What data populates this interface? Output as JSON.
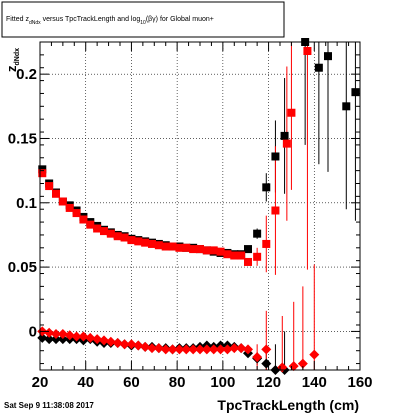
{
  "title": {
    "part1": "Fitted  z",
    "sub1": "dNdx",
    "part2": " versus TpcTrackLength and log",
    "sub2": "10",
    "part3": "(βγ) for Global muon+"
  },
  "footer": "Sat Sep  9 11:38:08 2017",
  "chart_data": {
    "type": "scatter",
    "title": "Fitted z_dNdx versus TpcTrackLength and log10(βγ) for Global muon+",
    "xlabel": "TpcTrackLength (cm)",
    "ylabel": "z_dNdx",
    "ylabel_main": "z",
    "ylabel_sub": "dNdx",
    "xlim": [
      20,
      160
    ],
    "ylim": [
      -0.03,
      0.225
    ],
    "grid": true,
    "x_ticks": [
      20,
      40,
      60,
      80,
      100,
      120,
      140,
      160
    ],
    "y_ticks": [
      {
        "v": 0,
        "label": "0"
      },
      {
        "v": 0.05,
        "label": "0.05"
      },
      {
        "v": 0.1,
        "label": "0.1"
      },
      {
        "v": 0.15,
        "label": "0.15"
      },
      {
        "v": 0.2,
        "label": "0.2"
      }
    ],
    "series": [
      {
        "marker": "square",
        "color": "#000000",
        "points": [
          [
            21,
            0.126,
            0
          ],
          [
            24,
            0.115,
            0
          ],
          [
            27,
            0.108,
            0
          ],
          [
            30,
            0.101,
            0
          ],
          [
            33,
            0.098,
            0
          ],
          [
            36,
            0.094,
            0
          ],
          [
            39,
            0.089,
            0
          ],
          [
            42,
            0.085,
            0
          ],
          [
            45,
            0.082,
            0
          ],
          [
            48,
            0.079,
            0
          ],
          [
            51,
            0.077,
            0
          ],
          [
            54,
            0.075,
            0
          ],
          [
            57,
            0.074,
            0
          ],
          [
            60,
            0.072,
            0
          ],
          [
            63,
            0.071,
            0
          ],
          [
            66,
            0.07,
            0
          ],
          [
            69,
            0.069,
            0
          ],
          [
            72,
            0.068,
            0
          ],
          [
            75,
            0.067,
            0
          ],
          [
            78,
            0.066,
            0
          ],
          [
            81,
            0.066,
            0
          ],
          [
            84,
            0.065,
            0
          ],
          [
            87,
            0.065,
            0
          ],
          [
            90,
            0.064,
            0
          ],
          [
            93,
            0.063,
            0
          ],
          [
            96,
            0.062,
            0
          ],
          [
            99,
            0.061,
            0
          ],
          [
            102,
            0.061,
            0
          ],
          [
            105,
            0.06,
            0
          ],
          [
            108,
            0.06,
            0
          ],
          [
            111,
            0.064,
            0
          ],
          [
            115,
            0.076,
            0.004
          ],
          [
            119,
            0.112,
            0.011
          ],
          [
            123,
            0.136,
            0.028
          ],
          [
            127,
            0.152,
            0.045
          ],
          [
            136,
            0.225,
            0.08
          ],
          [
            142,
            0.205,
            0.075
          ],
          [
            146,
            0.214,
            0.09
          ],
          [
            154,
            0.175,
            0.08
          ],
          [
            158,
            0.186,
            0.1
          ]
        ]
      },
      {
        "marker": "square",
        "color": "#ff0000",
        "points": [
          [
            21,
            0.123,
            0
          ],
          [
            24,
            0.113,
            0
          ],
          [
            27,
            0.107,
            0
          ],
          [
            30,
            0.101,
            0
          ],
          [
            33,
            0.096,
            0
          ],
          [
            36,
            0.092,
            0
          ],
          [
            39,
            0.087,
            0
          ],
          [
            42,
            0.083,
            0
          ],
          [
            45,
            0.08,
            0
          ],
          [
            48,
            0.078,
            0
          ],
          [
            51,
            0.076,
            0
          ],
          [
            54,
            0.074,
            0
          ],
          [
            57,
            0.073,
            0
          ],
          [
            60,
            0.071,
            0
          ],
          [
            63,
            0.07,
            0
          ],
          [
            66,
            0.069,
            0
          ],
          [
            69,
            0.068,
            0
          ],
          [
            72,
            0.067,
            0
          ],
          [
            75,
            0.066,
            0
          ],
          [
            78,
            0.066,
            0
          ],
          [
            81,
            0.065,
            0
          ],
          [
            84,
            0.065,
            0
          ],
          [
            87,
            0.064,
            0
          ],
          [
            90,
            0.064,
            0
          ],
          [
            93,
            0.063,
            0
          ],
          [
            96,
            0.063,
            0
          ],
          [
            99,
            0.062,
            0
          ],
          [
            102,
            0.06,
            0
          ],
          [
            105,
            0.059,
            0
          ],
          [
            108,
            0.059,
            0
          ],
          [
            111,
            0.054,
            0
          ],
          [
            115,
            0.058,
            0.007
          ],
          [
            119,
            0.068,
            0.022
          ],
          [
            123,
            0.094,
            0.05
          ],
          [
            128,
            0.146,
            0.06
          ],
          [
            130,
            0.17,
            0.06
          ],
          [
            137,
            0.218,
            0.17
          ]
        ]
      },
      {
        "marker": "diamond",
        "color": "#000000",
        "points": [
          [
            21,
            -0.005,
            0
          ],
          [
            24,
            -0.006,
            0
          ],
          [
            27,
            -0.006,
            0
          ],
          [
            30,
            -0.006,
            0
          ],
          [
            33,
            -0.006,
            0
          ],
          [
            36,
            -0.006,
            0
          ],
          [
            39,
            -0.007,
            0
          ],
          [
            42,
            -0.006,
            0
          ],
          [
            45,
            -0.008,
            0
          ],
          [
            48,
            -0.009,
            0
          ],
          [
            51,
            -0.009,
            0
          ],
          [
            54,
            -0.009,
            0
          ],
          [
            57,
            -0.01,
            0
          ],
          [
            60,
            -0.011,
            0
          ],
          [
            63,
            -0.011,
            0
          ],
          [
            66,
            -0.012,
            0
          ],
          [
            69,
            -0.012,
            0
          ],
          [
            72,
            -0.013,
            0
          ],
          [
            75,
            -0.013,
            0
          ],
          [
            78,
            -0.014,
            0
          ],
          [
            81,
            -0.013,
            0
          ],
          [
            84,
            -0.013,
            0
          ],
          [
            87,
            -0.013,
            0
          ],
          [
            90,
            -0.012,
            0
          ],
          [
            93,
            -0.011,
            0
          ],
          [
            96,
            -0.012,
            0
          ],
          [
            99,
            -0.011,
            0
          ],
          [
            102,
            -0.011,
            0
          ],
          [
            105,
            -0.012,
            0
          ],
          [
            108,
            -0.013,
            0
          ],
          [
            111,
            -0.017,
            0
          ],
          [
            115,
            -0.021,
            0.005
          ],
          [
            119,
            -0.025,
            0.012
          ],
          [
            123,
            -0.03,
            0.02
          ],
          [
            127,
            -0.03,
            0.03
          ]
        ]
      },
      {
        "marker": "diamond",
        "color": "#ff0000",
        "points": [
          [
            21,
            0.0,
            0
          ],
          [
            24,
            -0.001,
            0
          ],
          [
            27,
            -0.002,
            0
          ],
          [
            30,
            -0.002,
            0
          ],
          [
            33,
            -0.003,
            0
          ],
          [
            36,
            -0.004,
            0
          ],
          [
            39,
            -0.004,
            0
          ],
          [
            42,
            -0.005,
            0
          ],
          [
            45,
            -0.006,
            0
          ],
          [
            48,
            -0.007,
            0
          ],
          [
            51,
            -0.008,
            0
          ],
          [
            54,
            -0.009,
            0
          ],
          [
            57,
            -0.01,
            0
          ],
          [
            60,
            -0.01,
            0
          ],
          [
            63,
            -0.011,
            0
          ],
          [
            66,
            -0.012,
            0
          ],
          [
            69,
            -0.013,
            0
          ],
          [
            72,
            -0.013,
            0
          ],
          [
            75,
            -0.014,
            0
          ],
          [
            78,
            -0.014,
            0
          ],
          [
            81,
            -0.014,
            0
          ],
          [
            84,
            -0.014,
            0
          ],
          [
            87,
            -0.014,
            0
          ],
          [
            90,
            -0.014,
            0
          ],
          [
            93,
            -0.014,
            0
          ],
          [
            96,
            -0.014,
            0
          ],
          [
            99,
            -0.014,
            0
          ],
          [
            102,
            -0.014,
            0
          ],
          [
            105,
            -0.013,
            0
          ],
          [
            108,
            -0.013,
            0
          ],
          [
            111,
            -0.014,
            0
          ],
          [
            115,
            -0.02,
            0.01
          ],
          [
            119,
            -0.014,
            0.03
          ],
          [
            126,
            -0.028,
            0.04
          ],
          [
            131,
            -0.027,
            0.05
          ],
          [
            135,
            -0.025,
            0.06
          ],
          [
            140,
            -0.018,
            0.07
          ]
        ]
      }
    ]
  }
}
